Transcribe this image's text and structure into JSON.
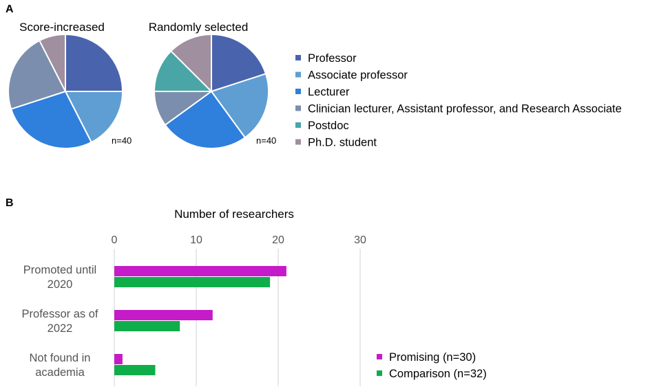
{
  "panels": {
    "a_label": "A",
    "b_label": "B"
  },
  "colors": {
    "professor": "#4a63ad",
    "associate_professor": "#5f9ed3",
    "lecturer": "#2f7fdc",
    "clinician_lecturer": "#7b8ead",
    "postdoc": "#4aa6a6",
    "phd_student": "#9f8f9f",
    "promising": "#c61bc9",
    "comparison": "#0fae4a",
    "gridline": "#d0d0d0",
    "tick_text": "#555555"
  },
  "chart_data": [
    {
      "type": "pie",
      "title": "Score-increased",
      "note": "n=40",
      "labels": [
        "Professor",
        "Associate professor",
        "Lecturer",
        "Clinician lecturer, Assistant professor, and Research Associate",
        "Postdoc",
        "Ph.D. student"
      ],
      "values": [
        10,
        7,
        11,
        9,
        0,
        3
      ],
      "colors": [
        "#4a63ad",
        "#5f9ed3",
        "#2f7fdc",
        "#7b8ead",
        "#4aa6a6",
        "#9f8f9f"
      ]
    },
    {
      "type": "pie",
      "title": "Randomly selected",
      "note": "n=40",
      "labels": [
        "Professor",
        "Associate professor",
        "Lecturer",
        "Clinician lecturer, Assistant professor, and Research Associate",
        "Postdoc",
        "Ph.D. student"
      ],
      "values": [
        8,
        8,
        10,
        4,
        5,
        5
      ],
      "colors": [
        "#4a63ad",
        "#5f9ed3",
        "#2f7fdc",
        "#7b8ead",
        "#4aa6a6",
        "#9f8f9f"
      ]
    },
    {
      "type": "bar",
      "orientation": "horizontal",
      "title": "Number of researchers",
      "categories": [
        "Promoted until 2020",
        "Professor as of 2022",
        "Not found in academia"
      ],
      "series": [
        {
          "name": "Promising (n=30)",
          "values": [
            21,
            12,
            1
          ],
          "color": "#c61bc9"
        },
        {
          "name": "Comparison (n=32)",
          "values": [
            19,
            8,
            5
          ],
          "color": "#0fae4a"
        }
      ],
      "xlim": [
        0,
        30
      ],
      "xticks": [
        "0",
        "10",
        "20",
        "30"
      ],
      "grid": true,
      "legend": "bottom-right"
    }
  ],
  "legend_a": [
    "Professor",
    "Associate professor",
    "Lecturer",
    "Clinician lecturer, Assistant professor, and Research Associate",
    "Postdoc",
    "Ph.D. student"
  ],
  "bar_category_lines": [
    [
      "Promoted until",
      "2020"
    ],
    [
      "Professor as of",
      "2022"
    ],
    [
      "Not found in",
      "academia"
    ]
  ]
}
